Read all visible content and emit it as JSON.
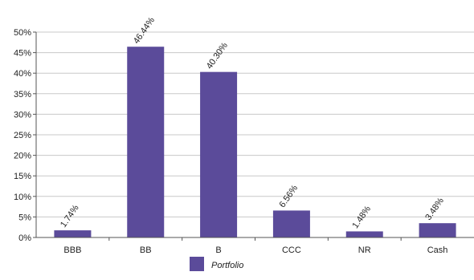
{
  "chart_data": {
    "type": "bar",
    "categories": [
      "BBB",
      "BB",
      "B",
      "CCC",
      "NR",
      "Cash"
    ],
    "series": [
      {
        "name": "Portfolio",
        "values": [
          1.74,
          46.44,
          40.3,
          6.56,
          1.48,
          3.48
        ]
      }
    ],
    "data_labels": [
      "1.74%",
      "46.44%",
      "40.30%",
      "6.56%",
      "1.48%",
      "3.48%"
    ],
    "y_ticks": [
      "0%",
      "5%",
      "10%",
      "15%",
      "20%",
      "25%",
      "30%",
      "35%",
      "40%",
      "45%",
      "50%"
    ],
    "ylim": [
      0,
      50
    ],
    "grid": true,
    "legend_position": "bottom-center",
    "bar_color": "#5b4b9a"
  }
}
